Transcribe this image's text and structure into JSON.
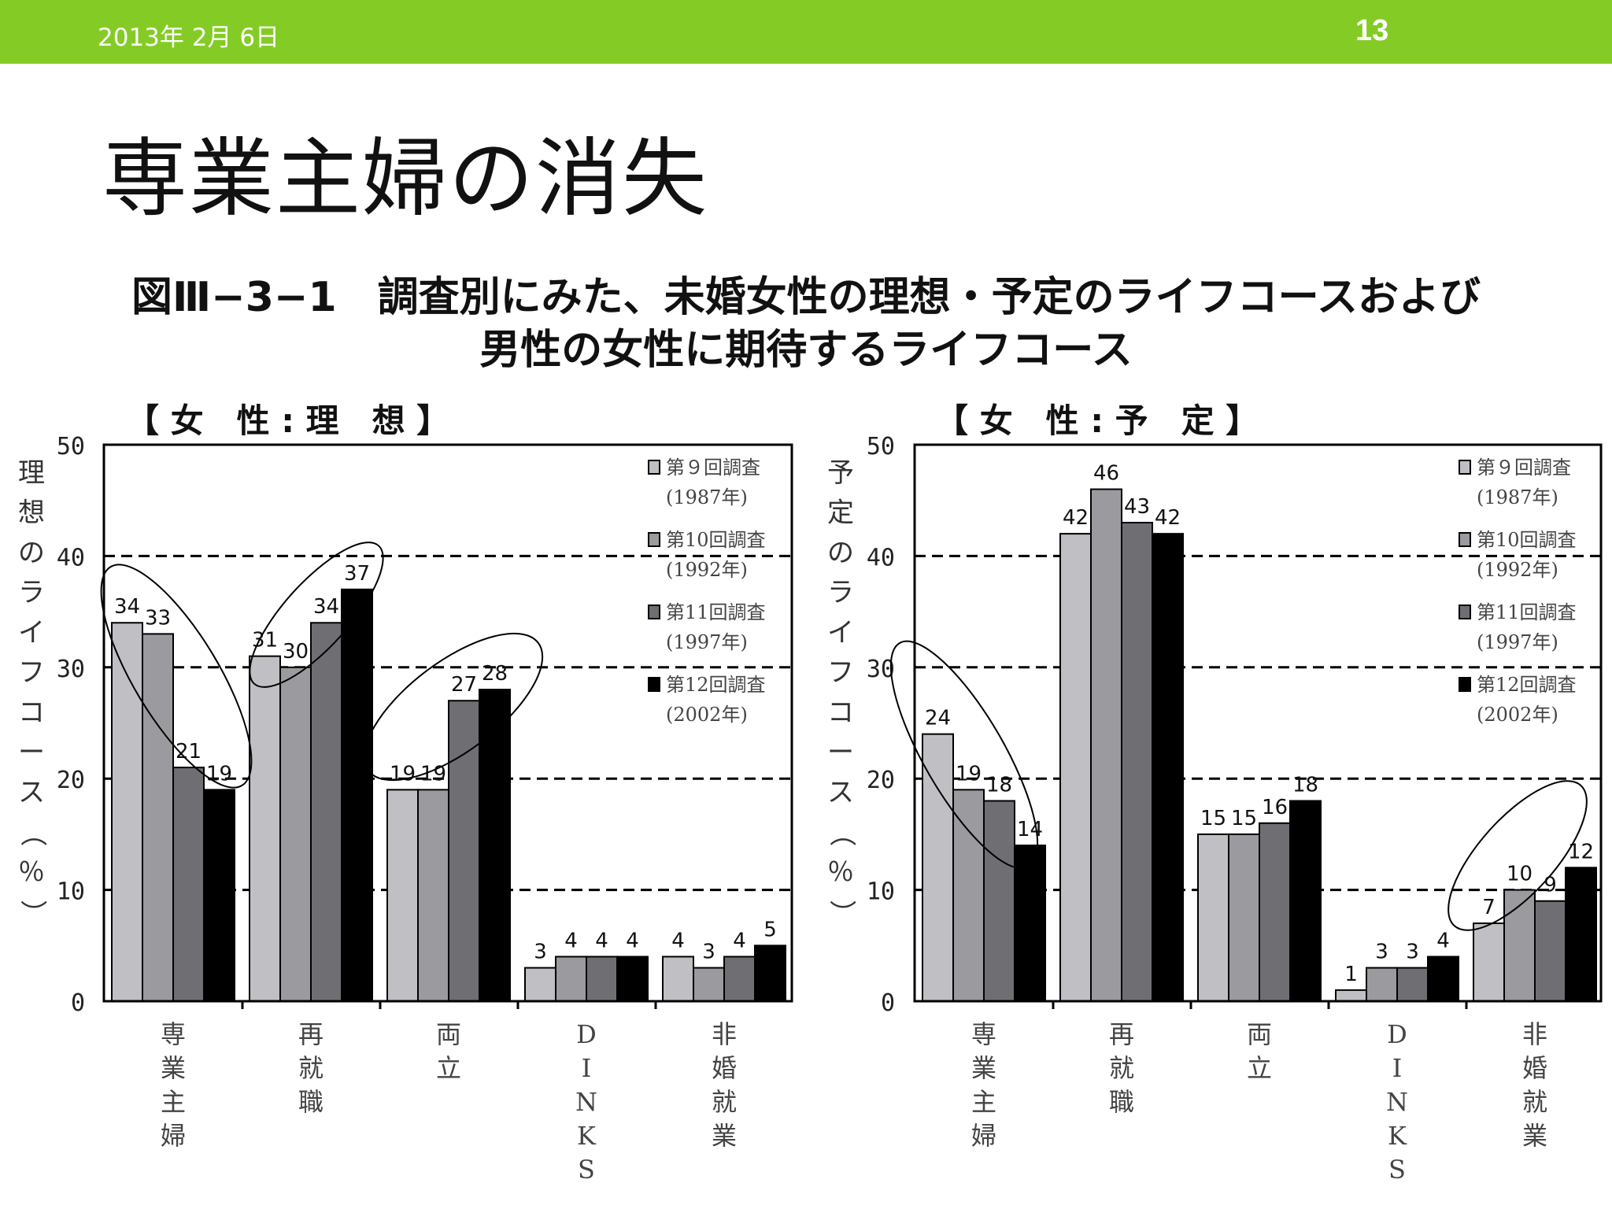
{
  "header": {
    "date": "2013年 2月 6日",
    "page_number": "13",
    "bar_color": "#84cc25"
  },
  "slide_title": "専業主婦の消失",
  "figure_title": {
    "line1": "図Ⅲ−3−1　調査別にみた、未婚女性の理想・予定のライフコースおよび",
    "line2": "男性の女性に期待するライフコース"
  },
  "legend": [
    {
      "label": "第９回調査",
      "year": "(1987年)",
      "color": "#c0c0c4"
    },
    {
      "label": "第10回調査",
      "year": "(1992年)",
      "color": "#9b9b9f"
    },
    {
      "label": "第11回調査",
      "year": "(1997年)",
      "color": "#6f6f73"
    },
    {
      "label": "第12回調査",
      "year": "(2002年)",
      "color": "#000000"
    }
  ],
  "chart_data": [
    {
      "type": "bar",
      "panel_title": "【 女　性 : 理　想 】",
      "ylabel": "理想のライフコース（％）",
      "ylim": [
        0,
        50
      ],
      "yticks": [
        0,
        10,
        20,
        30,
        40,
        50
      ],
      "grid": "dashed at 10, 20, 30, 40",
      "categories": [
        "専業主婦",
        "再就職",
        "両立",
        "DINKS",
        "非婚就業"
      ],
      "series": [
        {
          "name": "第９回調査 (1987年)",
          "values": [
            34,
            31,
            19,
            3,
            4
          ]
        },
        {
          "name": "第10回調査 (1992年)",
          "values": [
            33,
            30,
            19,
            4,
            3
          ]
        },
        {
          "name": "第11回調査 (1997年)",
          "values": [
            21,
            34,
            27,
            4,
            4
          ]
        },
        {
          "name": "第12回調査 (2002年)",
          "values": [
            19,
            37,
            28,
            4,
            5
          ]
        }
      ],
      "legend_position": "top-right",
      "highlighted_categories": [
        "専業主婦",
        "再就職",
        "両立"
      ]
    },
    {
      "type": "bar",
      "panel_title": "【 女　性 : 予　定 】",
      "ylabel": "予定のライフコース（％）",
      "ylim": [
        0,
        50
      ],
      "yticks": [
        0,
        10,
        20,
        30,
        40,
        50
      ],
      "grid": "dashed at 10, 20, 30, 40",
      "categories": [
        "専業主婦",
        "再就職",
        "両立",
        "DINKS",
        "非婚就業"
      ],
      "series": [
        {
          "name": "第９回調査 (1987年)",
          "values": [
            24,
            42,
            15,
            1,
            7
          ]
        },
        {
          "name": "第10回調査 (1992年)",
          "values": [
            19,
            46,
            15,
            3,
            10
          ]
        },
        {
          "name": "第11回調査 (1997年)",
          "values": [
            18,
            43,
            16,
            3,
            9
          ]
        },
        {
          "name": "第12回調査 (2002年)",
          "values": [
            14,
            42,
            18,
            4,
            12
          ]
        }
      ],
      "legend_position": "top-right",
      "highlighted_categories": [
        "専業主婦",
        "非婚就業"
      ]
    }
  ]
}
